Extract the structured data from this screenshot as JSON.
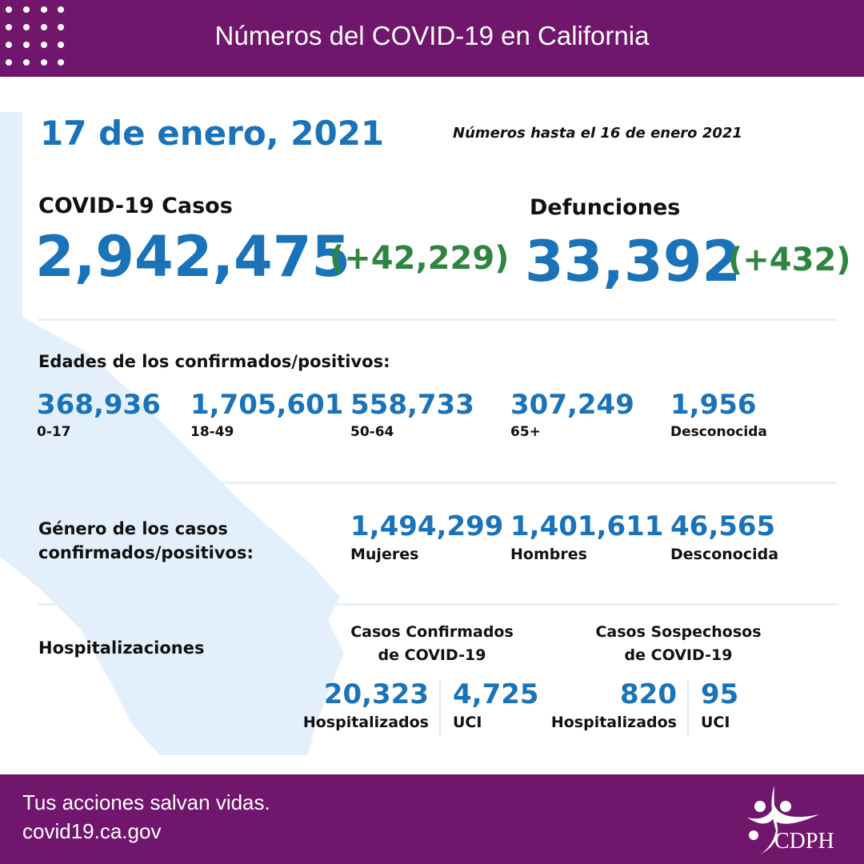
{
  "header": {
    "title": "Números del COVID-19 en California"
  },
  "date": "17 de enero, 2021",
  "as_of": "Números hasta el 16 de enero 2021",
  "cases": {
    "label": "COVID-19 Casos",
    "total": "2,942,475",
    "change": "(+42,229)"
  },
  "deaths": {
    "label": "Defunciones",
    "total": "33,392",
    "change": "(+432)"
  },
  "ages": {
    "label": "Edades de los confirmados/positivos:",
    "items": [
      {
        "value": "368,936",
        "label": "0-17"
      },
      {
        "value": "1,705,601",
        "label": "18-49"
      },
      {
        "value": "558,733",
        "label": "50-64"
      },
      {
        "value": "307,249",
        "label": "65+"
      },
      {
        "value": "1,956",
        "label": "Desconocida"
      }
    ]
  },
  "gender": {
    "label_line1": "Género de los casos",
    "label_line2": "confirmados/positivos:",
    "items": [
      {
        "value": "1,494,299",
        "label": "Mujeres"
      },
      {
        "value": "1,401,611",
        "label": "Hombres"
      },
      {
        "value": "46,565",
        "label": "Desconocida"
      }
    ]
  },
  "hosp": {
    "label": "Hospitalizaciones",
    "confirmed": {
      "title1": "Casos Confirmados",
      "title2": "de COVID-19",
      "hosp_value": "20,323",
      "hosp_label": "Hospitalizados",
      "icu_value": "4,725",
      "icu_label": "UCI"
    },
    "suspected": {
      "title1": "Casos Sospechosos",
      "title2": "de COVID-19",
      "hosp_value": "820",
      "hosp_label": "Hospitalizados",
      "icu_value": "95",
      "icu_label": "UCI"
    }
  },
  "footer": {
    "tagline": "Tus acciones salvan vidas.",
    "url": "covid19.ca.gov",
    "logo_text": "CDPH"
  },
  "colors": {
    "purple": "#71166d",
    "blue": "#1a73b8",
    "green": "#2e8540",
    "map": "#e3f0fb"
  }
}
